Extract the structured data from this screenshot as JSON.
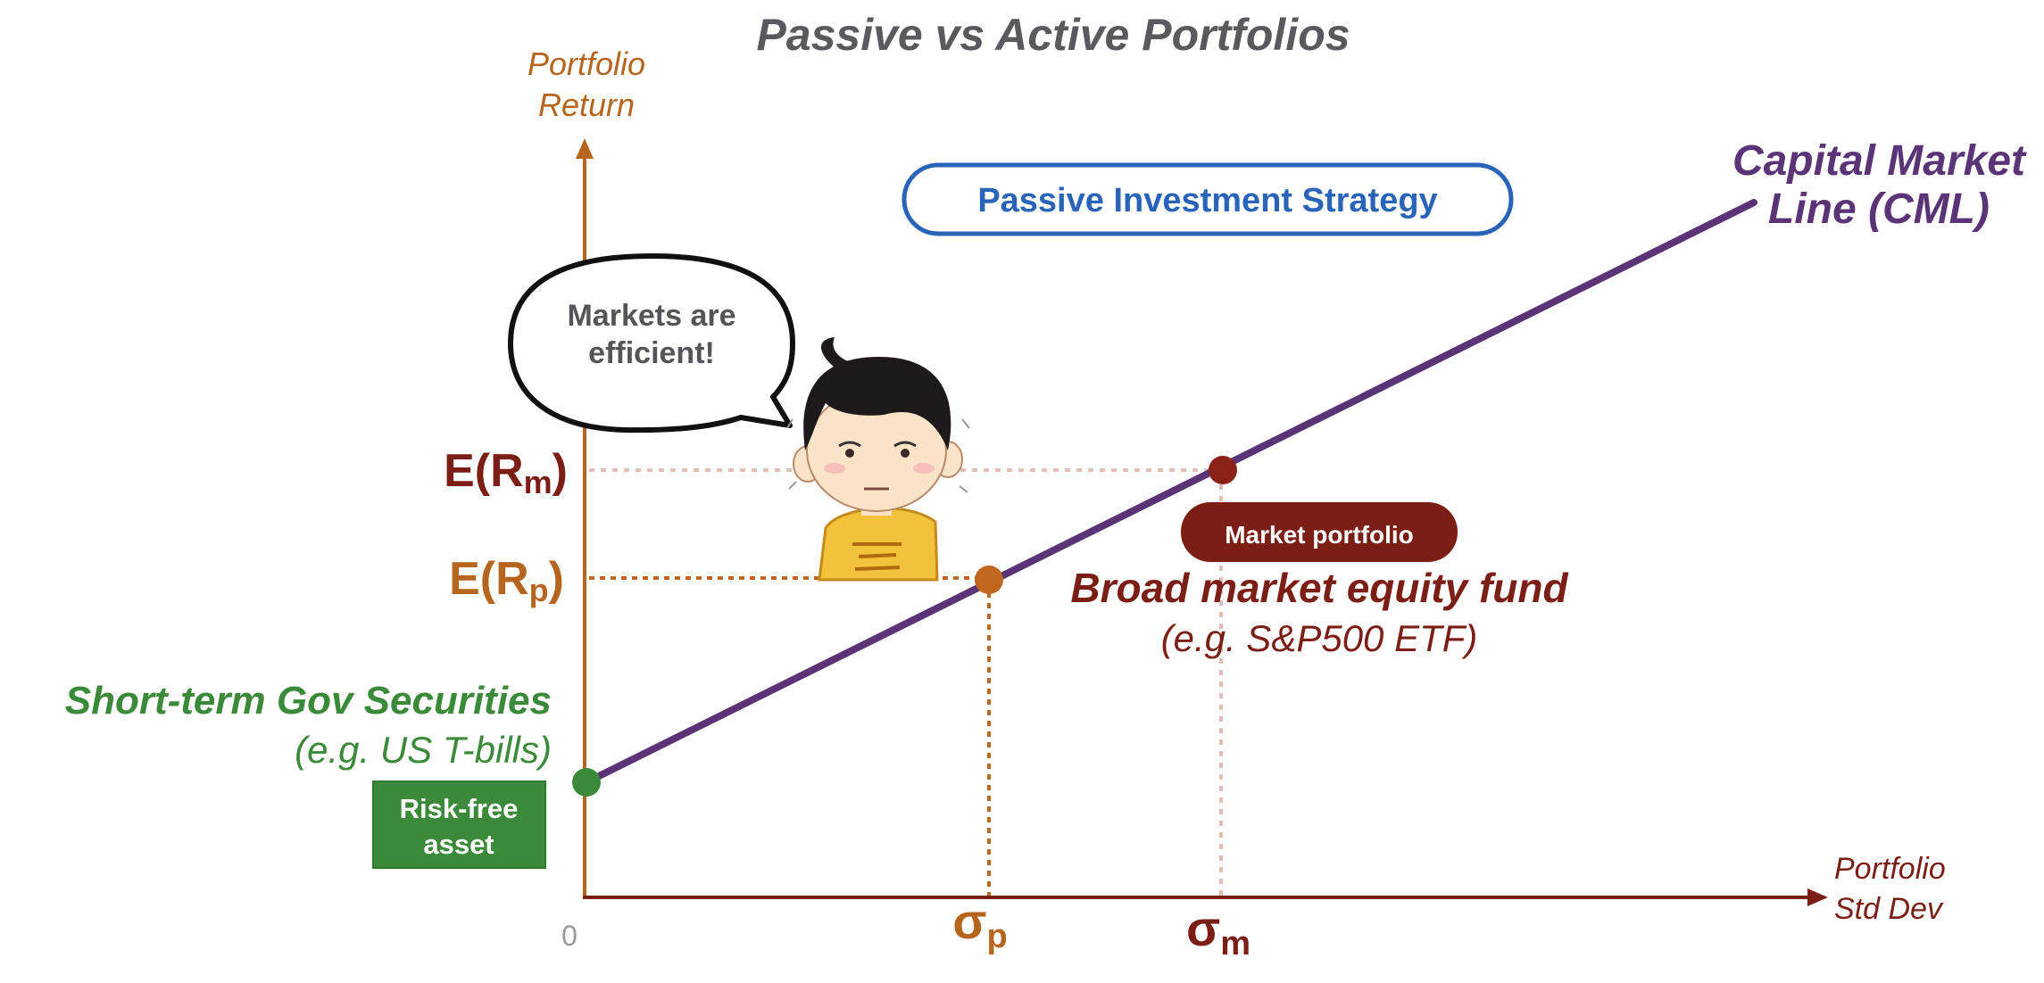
{
  "title": "Passive vs Active Portfolios",
  "axes": {
    "y_label_line1": "Portfolio",
    "y_label_line2": "Return",
    "x_label_line1": "Portfolio",
    "x_label_line2": "Std Dev",
    "origin": "0"
  },
  "strategy_box": "Passive Investment Strategy",
  "cml": {
    "line1": "Capital Market",
    "line2": "Line (CML)"
  },
  "speech_bubble": {
    "line1": "Markets are",
    "line2": "efficient!"
  },
  "y_ticks": {
    "market_base": "E(R",
    "market_sub": "m",
    "market_close": ")",
    "portfolio_base": "E(R",
    "portfolio_sub": "p",
    "portfolio_close": ")"
  },
  "x_ticks": {
    "portfolio_base": "σ",
    "portfolio_sub": "p",
    "market_base": "σ",
    "market_sub": "m"
  },
  "market_badge": "Market portfolio",
  "market_fund": {
    "line1": "Broad market equity fund",
    "line2": "(e.g. S&P500 ETF)"
  },
  "risk_free": {
    "line1": "Short-term Gov Securities",
    "line2": "(e.g. US T-bills)",
    "badge_line1": "Risk-free",
    "badge_line2": "asset"
  },
  "colors": {
    "title": "#5a5a5e",
    "y_axis": "#b5651d",
    "x_axis": "#7b1f16",
    "cml": "#5b3478",
    "strategy": "#2a64b8",
    "risk_free": "#3a8a3a",
    "market": "#7b1f16",
    "portfolio": "#b5651d",
    "skin": "#fbe3c8",
    "shirt": "#f2c23a"
  }
}
